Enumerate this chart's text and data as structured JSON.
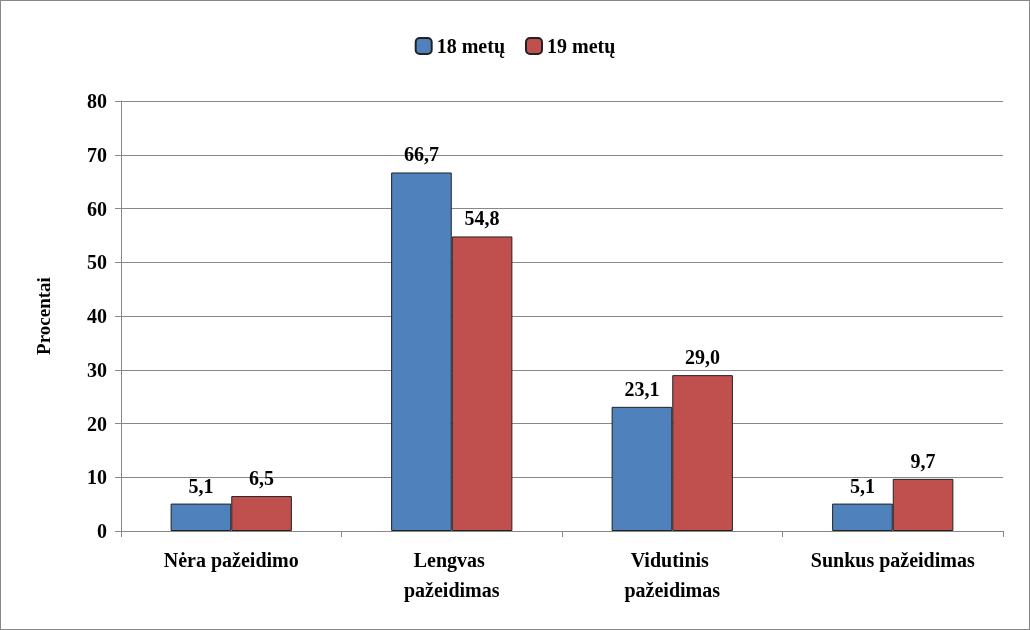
{
  "chart_data": {
    "type": "bar",
    "ylabel": "Procentai",
    "categories": [
      "Nėra pažeidimo",
      "Lengvas pažeidimas",
      "Vidutinis pažeidimas",
      "Sunkus pažeidimas"
    ],
    "series": [
      {
        "name": "18 metų",
        "color": "#4f81bd",
        "values": [
          5.1,
          66.7,
          23.1,
          5.1
        ],
        "value_labels": [
          "5,1",
          "66,7",
          "23,1",
          "5,1"
        ]
      },
      {
        "name": "19 metų",
        "color": "#c0504d",
        "values": [
          6.5,
          54.8,
          29.0,
          9.7
        ],
        "value_labels": [
          "6,5",
          "54,8",
          "29,0",
          "9,7"
        ]
      }
    ],
    "ylim": [
      0,
      80
    ],
    "yticks": [
      0,
      10,
      20,
      30,
      40,
      50,
      60,
      70,
      80
    ],
    "grid": "y",
    "legend": "top"
  }
}
